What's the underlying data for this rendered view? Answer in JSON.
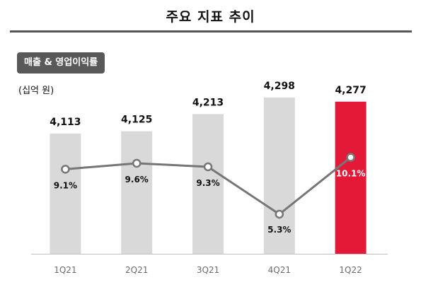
{
  "header": {
    "title": "주요 지표 추이"
  },
  "chart_title": "매출 & 영업이익률",
  "unit": "(십억 원)",
  "colors": {
    "bar": "#d9d9d9",
    "highlight_bar": "#e31937",
    "line": "#767676",
    "badge": "#595959"
  },
  "chart_data": {
    "type": "bar",
    "categories": [
      "1Q21",
      "2Q21",
      "3Q21",
      "4Q21",
      "1Q22"
    ],
    "series": [
      {
        "name": "매출",
        "type": "bar",
        "values": [
          4113,
          4125,
          4213,
          4298,
          4277
        ],
        "labels": [
          "4,113",
          "4,125",
          "4,213",
          "4,298",
          "4,277"
        ]
      },
      {
        "name": "영업이익률",
        "type": "line",
        "values": [
          9.1,
          9.6,
          9.3,
          5.3,
          10.1
        ],
        "labels": [
          "9.1%",
          "9.6%",
          "9.3%",
          "5.3%",
          "10.1%"
        ]
      }
    ],
    "highlight_category": "1Q22",
    "legend": "none",
    "grid": false
  }
}
